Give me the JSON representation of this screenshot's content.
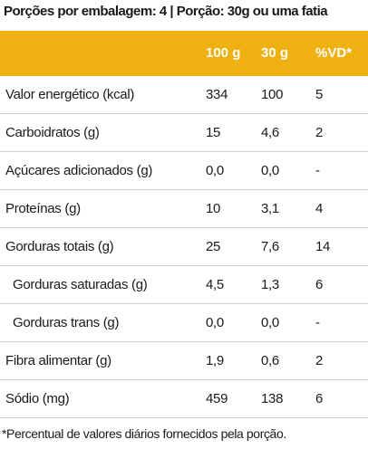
{
  "serving_line": "Porções por embalagem: 4 | Porção: 30g ou uma fatia",
  "header": {
    "col_100g": "100 g",
    "col_30g": "30 g",
    "col_vd": "%VD*"
  },
  "rows": [
    {
      "label": "Valor energético (kcal)",
      "v100": "334",
      "v30": "100",
      "vd": "5"
    },
    {
      "label": "Carboidratos (g)",
      "v100": "15",
      "v30": "4,6",
      "vd": "2"
    },
    {
      "label": "Açúcares adicionados (g)",
      "v100": "0,0",
      "v30": "0,0",
      "vd": "-"
    },
    {
      "label": "Proteínas (g)",
      "v100": "10",
      "v30": "3,1",
      "vd": "4"
    },
    {
      "label": "Gorduras totais (g)",
      "v100": "25",
      "v30": "7,6",
      "vd": "14"
    },
    {
      "label": "Gorduras saturadas (g)",
      "v100": "4,5",
      "v30": "1,3",
      "vd": "6"
    },
    {
      "label": "Gorduras trans (g)",
      "v100": "0,0",
      "v30": "0,0",
      "vd": "-"
    },
    {
      "label": "Fibra alimentar (g)",
      "v100": "1,9",
      "v30": "0,6",
      "vd": "2"
    },
    {
      "label": "Sódio (mg)",
      "v100": "459",
      "v30": "138",
      "vd": "6"
    }
  ],
  "footnote": "*Percentual de valores diários fornecidos pela porção.",
  "colors": {
    "header_background": "#eeb111",
    "header_text": "#ffffff",
    "row_divider": "#cfcfcf"
  }
}
